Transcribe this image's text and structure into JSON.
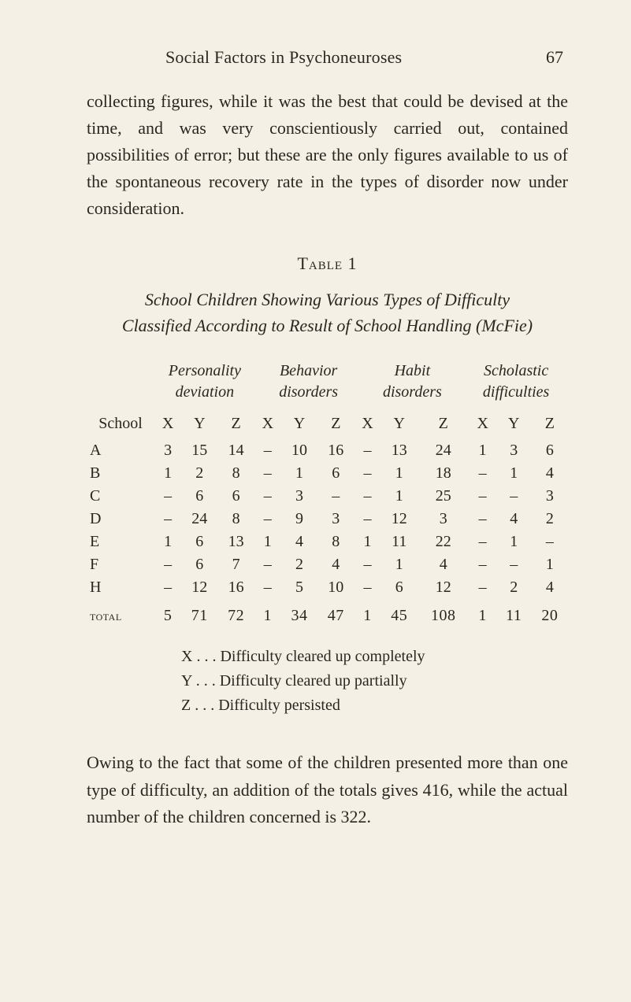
{
  "page": {
    "running_title": "Social Factors in Psychoneuroses",
    "number": "67"
  },
  "intro_paragraph": "collecting figures, while it was the best that could be devised at the time, and was very conscientiously carried out, contained possibilities of error; but these are the only figures available to us of the spontaneous recovery rate in the types of disorder now under consideration.",
  "table": {
    "label": "Table 1",
    "title": "School Children Showing Various Types of Difficulty Classified According to Result of School Handling (McFie)",
    "column_groups": [
      "Personality\ndeviation",
      "Behavior\ndisorders",
      "Habit\ndisorders",
      "Scholastic\ndifficulties"
    ],
    "sub_columns": [
      "X",
      "Y",
      "Z"
    ],
    "row_label_header": "School",
    "rows": [
      {
        "label": "A",
        "cells": [
          "3",
          "15",
          "14",
          "–",
          "10",
          "16",
          "–",
          "13",
          "24",
          "1",
          "3",
          "6"
        ]
      },
      {
        "label": "B",
        "cells": [
          "1",
          "2",
          "8",
          "–",
          "1",
          "6",
          "–",
          "1",
          "18",
          "–",
          "1",
          "4"
        ]
      },
      {
        "label": "C",
        "cells": [
          "–",
          "6",
          "6",
          "–",
          "3",
          "–",
          "–",
          "1",
          "25",
          "–",
          "–",
          "3"
        ]
      },
      {
        "label": "D",
        "cells": [
          "–",
          "24",
          "8",
          "–",
          "9",
          "3",
          "–",
          "12",
          "3",
          "–",
          "4",
          "2"
        ]
      },
      {
        "label": "E",
        "cells": [
          "1",
          "6",
          "13",
          "1",
          "4",
          "8",
          "1",
          "11",
          "22",
          "–",
          "1",
          "–"
        ]
      },
      {
        "label": "F",
        "cells": [
          "–",
          "6",
          "7",
          "–",
          "2",
          "4",
          "–",
          "1",
          "4",
          "–",
          "–",
          "1"
        ]
      },
      {
        "label": "H",
        "cells": [
          "–",
          "12",
          "16",
          "–",
          "5",
          "10",
          "–",
          "6",
          "12",
          "–",
          "2",
          "4"
        ]
      }
    ],
    "total": {
      "label": "total",
      "cells": [
        "5",
        "71",
        "72",
        "1",
        "34",
        "47",
        "1",
        "45",
        "108",
        "1",
        "11",
        "20"
      ]
    },
    "legend": [
      "X . . . Difficulty cleared up completely",
      "Y . . . Difficulty cleared up partially",
      "Z . . . Difficulty persisted"
    ]
  },
  "closing_paragraph": "Owing to the fact that some of the children presented more than one type of difficulty, an addition of the totals gives 416, while the actual number of the children concerned is 322.",
  "colors": {
    "background": "#f5f0e5",
    "text": "#2a2620"
  }
}
